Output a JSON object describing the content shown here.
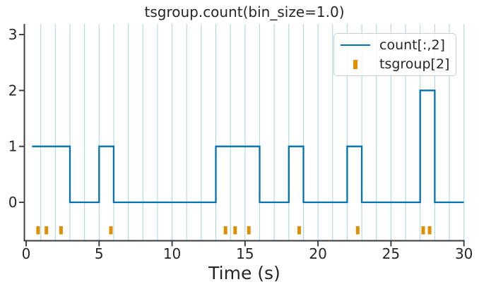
{
  "chart_data": {
    "type": "line",
    "title": "tsgroup.count(bin_size=1.0)",
    "xlabel": "Time (s)",
    "ylabel": "",
    "xlim": [
      0,
      30
    ],
    "ylim": [
      -0.69,
      3.19
    ],
    "xticks": [
      "0",
      "5",
      "10",
      "15",
      "20",
      "25",
      "30"
    ],
    "xtick_values": [
      0,
      5,
      10,
      15,
      20,
      25,
      30
    ],
    "yticks": [
      "0",
      "1",
      "2",
      "3"
    ],
    "ytick_values": [
      0,
      1,
      2,
      3
    ],
    "grid": "vertical light-blue lines at every 1.0 s bin edge, full plot height",
    "bin_size": 1.0,
    "series": [
      {
        "name": "count[:,2]",
        "style": "step-mid",
        "color": "#0173b2",
        "bin_centers_start": 0.5,
        "values": [
          1,
          1,
          1,
          0,
          0,
          1,
          0,
          0,
          0,
          0,
          0,
          0,
          0,
          1,
          1,
          1,
          0,
          0,
          1,
          0,
          0,
          0,
          1,
          0,
          0,
          0,
          0,
          2,
          0,
          0
        ],
        "x_start": 0.45,
        "x_end": 29.95
      },
      {
        "name": "tsgroup[2]",
        "style": "event-ticks",
        "color": "#de8f05",
        "y": -0.5,
        "times": [
          0.82,
          1.39,
          2.39,
          5.81,
          13.66,
          14.32,
          15.26,
          18.71,
          22.72,
          27.21,
          27.65
        ]
      }
    ],
    "legend": {
      "position": "upper right",
      "entries": [
        {
          "label": "count[:,2]",
          "swatch": "line",
          "color": "#0173b2"
        },
        {
          "label": "tsgroup[2]",
          "swatch": "tick",
          "color": "#de8f05"
        }
      ]
    },
    "colors": {
      "line": "#0173b2",
      "events": "#de8f05",
      "grid": "#add8e6",
      "spine": "#3a3a3a",
      "text": "#262626",
      "legend_border": "#cccccc",
      "background": "#ffffff"
    }
  }
}
